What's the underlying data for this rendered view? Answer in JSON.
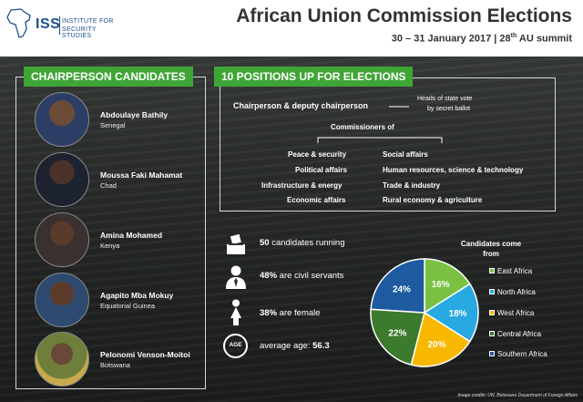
{
  "header": {
    "logo_text": "ISS",
    "logo_line1": "INSTITUTE FOR",
    "logo_line2": "SECURITY STUDIES",
    "title": "African Union Commission Elections",
    "subtitle_pre": "30 – 31 January 2017  |  28",
    "subtitle_sup": "th",
    "subtitle_post": " AU summit"
  },
  "candidates": {
    "heading": "CHAIRPERSON CANDIDATES",
    "items": [
      {
        "name": "Abdoulaye Bathily",
        "country": "Senegal"
      },
      {
        "name": "Moussa Faki Mahamat",
        "country": "Chad"
      },
      {
        "name": "Amina Mohamed",
        "country": "Kenya"
      },
      {
        "name": "Agapito Mba Mokuy",
        "country": "Equatorial Guinea"
      },
      {
        "name": "Pelonomi Venson-Moitoi",
        "country": "Botswana"
      }
    ]
  },
  "positions": {
    "heading": "10 POSITIONS UP FOR ELECTIONS",
    "chair": "Chairperson & deputy chairperson",
    "vote_note_1": "Heads of state vote",
    "vote_note_2": "by secret ballot",
    "commissioners": "Commissioners of",
    "left": [
      "Peace & security",
      "Political affairs",
      "Infrastructure & energy",
      "Economic affairs"
    ],
    "right": [
      "Social affairs",
      "Human resources, science & technology",
      "Trade & industry",
      "Rural economy & agriculture"
    ]
  },
  "stats": {
    "running_num": "50",
    "running_text": " candidates running",
    "civil_num": "48%",
    "civil_text": " are civil servants",
    "female_num": "38%",
    "female_text": " are female",
    "age_label": "AGE",
    "age_text": "average age: ",
    "age_num": "56.3"
  },
  "chart_data": {
    "type": "pie",
    "title": "Candidates come from",
    "categories": [
      "East Africa",
      "North Africa",
      "West Africa",
      "Central Africa",
      "Southern Africa"
    ],
    "values": [
      16,
      18,
      20,
      22,
      24
    ],
    "colors": [
      "#7ac143",
      "#29a9e1",
      "#f8b800",
      "#3c7a2e",
      "#1e5aa0"
    ],
    "unit": "%"
  },
  "credit": "Image credits: UN, Botswana Department of Foreign Affairs"
}
